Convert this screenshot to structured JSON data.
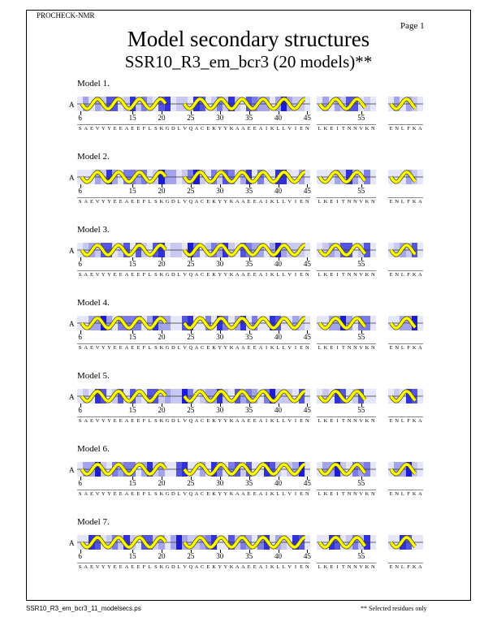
{
  "header": {
    "program": "PROCHECK-NMR",
    "page_label": "Page  1"
  },
  "title": "Model secondary structures",
  "subtitle": "SSR10_R3_em_bcr3 (20 models)**",
  "chain_id": "A",
  "segments": [
    {
      "sequence": "SAEVYYEEAEEFLSKGDLVQACEKYYKAAEEAIKLLVIEN",
      "start": 6,
      "number_labels": [
        "6",
        "15",
        "20",
        "25",
        "30",
        "35",
        "40",
        "45"
      ]
    },
    {
      "sequence": "LKEITNNVKN",
      "start": 48,
      "number_labels": [
        "55"
      ]
    },
    {
      "sequence": "ENLFKA",
      "start": 59,
      "number_labels": []
    }
  ],
  "models": [
    {
      "label": "Model  1."
    },
    {
      "label": "Model  2."
    },
    {
      "label": "Model  3."
    },
    {
      "label": "Model  4."
    },
    {
      "label": "Model  5."
    },
    {
      "label": "Model  6."
    },
    {
      "label": "Model  7."
    }
  ],
  "colors": {
    "helix": "#ffff00",
    "helix_outline": "#555500",
    "shade_dark": "#1a1ad8",
    "shade_light": "#e6e6fa"
  },
  "footer": {
    "filename": "SSR10_R3_em_bcr3_11_modelsecs.ps",
    "note": "** Selected residues only"
  }
}
